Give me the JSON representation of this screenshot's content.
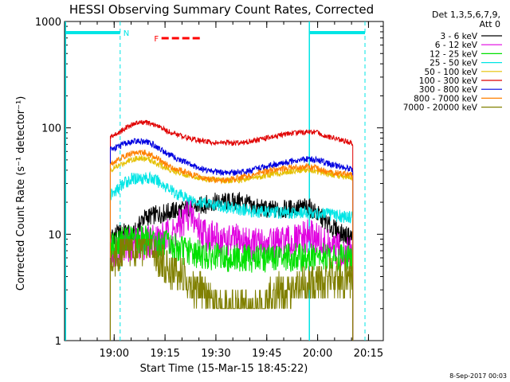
{
  "chart_data": {
    "type": "line",
    "title": "HESSI Observing Summary Count Rates, Corrected",
    "xlabel": "Start Time (15-Mar-15 18:45:22)",
    "ylabel": "Corrected Count Rate (s⁻¹ detector⁻¹)",
    "yscale": "log",
    "ylim": [
      1,
      1000
    ],
    "xlim_minutes_after_start": [
      0,
      94
    ],
    "x_ticks": [
      "19:00",
      "19:15",
      "19:30",
      "19:45",
      "20:00",
      "20:15"
    ],
    "y_ticks": [
      "1",
      "10",
      "100",
      "1000"
    ],
    "grid": false,
    "legend_header": [
      "Det 1,3,5,6,7,9,",
      "Att 0"
    ],
    "legend_position": "right",
    "flags": {
      "night_label": "N",
      "flare_label": "F",
      "colors": {
        "night": "#00e5e5",
        "flare": "#ff0000"
      }
    },
    "series": [
      {
        "name": "3 - 6 keV",
        "color": "#000000",
        "values": [
          [
            13.5,
            9.5
          ],
          [
            15,
            10
          ],
          [
            18,
            10.5
          ],
          [
            20,
            9.5
          ],
          [
            22,
            12
          ],
          [
            23,
            14
          ],
          [
            26,
            15
          ],
          [
            30,
            16
          ],
          [
            32,
            16.5
          ],
          [
            34,
            17
          ],
          [
            35,
            17
          ],
          [
            36,
            17.5
          ],
          [
            40,
            18.5
          ],
          [
            44,
            20
          ],
          [
            48,
            20
          ],
          [
            52,
            20.5
          ],
          [
            56,
            18
          ],
          [
            60,
            17
          ],
          [
            64,
            17
          ],
          [
            68,
            17.5
          ],
          [
            72,
            18
          ],
          [
            74,
            16
          ],
          [
            76,
            14
          ],
          [
            78,
            12
          ],
          [
            80,
            11
          ],
          [
            82,
            10
          ],
          [
            84,
            9.5
          ],
          [
            85,
            9.5
          ]
        ]
      },
      {
        "name": "6 - 12 keV",
        "color": "#e000e0",
        "values": [
          [
            13.5,
            7
          ],
          [
            16,
            7.5
          ],
          [
            20,
            8
          ],
          [
            24,
            8.5
          ],
          [
            28,
            9
          ],
          [
            32,
            10
          ],
          [
            34,
            12
          ],
          [
            35,
            13
          ],
          [
            36,
            16
          ],
          [
            38,
            14
          ],
          [
            40,
            11
          ],
          [
            42,
            10
          ],
          [
            44,
            9
          ],
          [
            48,
            8.5
          ],
          [
            52,
            8.5
          ],
          [
            56,
            8
          ],
          [
            60,
            8
          ],
          [
            64,
            8
          ],
          [
            68,
            8.5
          ],
          [
            70,
            9
          ],
          [
            72,
            9.5
          ],
          [
            73,
            9.5
          ],
          [
            74,
            9
          ],
          [
            76,
            8
          ],
          [
            78,
            7.5
          ],
          [
            80,
            7
          ],
          [
            82,
            7
          ],
          [
            84,
            6.5
          ],
          [
            85,
            6
          ]
        ]
      },
      {
        "name": "12 - 25 keV",
        "color": "#00e000",
        "values": [
          [
            13.5,
            7.5
          ],
          [
            15,
            8
          ],
          [
            18,
            9
          ],
          [
            22,
            9
          ],
          [
            26,
            8.5
          ],
          [
            28,
            8
          ],
          [
            30,
            8
          ],
          [
            32,
            7.5
          ],
          [
            36,
            7
          ],
          [
            40,
            6.5
          ],
          [
            44,
            6
          ],
          [
            48,
            6
          ],
          [
            52,
            6
          ],
          [
            56,
            6
          ],
          [
            60,
            6
          ],
          [
            64,
            6
          ],
          [
            68,
            6
          ],
          [
            72,
            6
          ],
          [
            76,
            6
          ],
          [
            80,
            6
          ],
          [
            84,
            6
          ],
          [
            85,
            6
          ]
        ]
      },
      {
        "name": "25 - 50 keV",
        "color": "#00e5e5",
        "values": [
          [
            13.5,
            23
          ],
          [
            16,
            27
          ],
          [
            18,
            31
          ],
          [
            20,
            33
          ],
          [
            22,
            34
          ],
          [
            24,
            34
          ],
          [
            26,
            33
          ],
          [
            28,
            31
          ],
          [
            30,
            28
          ],
          [
            32,
            25
          ],
          [
            36,
            22
          ],
          [
            40,
            20
          ],
          [
            44,
            19
          ],
          [
            48,
            18
          ],
          [
            52,
            17
          ],
          [
            56,
            16.5
          ],
          [
            60,
            16
          ],
          [
            64,
            16
          ],
          [
            68,
            16
          ],
          [
            72,
            16
          ],
          [
            76,
            15.5
          ],
          [
            80,
            15
          ],
          [
            84,
            14.5
          ],
          [
            85,
            14.5
          ]
        ]
      },
      {
        "name": "50 - 100 keV",
        "color": "#e5c000",
        "values": [
          [
            13.5,
            40
          ],
          [
            16,
            44
          ],
          [
            18,
            48
          ],
          [
            20,
            51
          ],
          [
            22,
            52
          ],
          [
            24,
            51
          ],
          [
            26,
            49
          ],
          [
            28,
            45
          ],
          [
            30,
            42
          ],
          [
            34,
            38
          ],
          [
            38,
            35
          ],
          [
            42,
            33
          ],
          [
            46,
            32
          ],
          [
            50,
            32
          ],
          [
            54,
            33
          ],
          [
            58,
            35
          ],
          [
            62,
            37
          ],
          [
            66,
            39
          ],
          [
            70,
            40
          ],
          [
            72,
            40
          ],
          [
            74,
            39
          ],
          [
            78,
            37
          ],
          [
            82,
            35
          ],
          [
            85,
            34
          ]
        ]
      },
      {
        "name": "100 - 300 keV",
        "color": "#e00000",
        "values": [
          [
            13.5,
            82
          ],
          [
            16,
            90
          ],
          [
            18,
            100
          ],
          [
            20,
            108
          ],
          [
            22,
            112
          ],
          [
            24,
            112
          ],
          [
            26,
            108
          ],
          [
            28,
            102
          ],
          [
            30,
            94
          ],
          [
            34,
            85
          ],
          [
            38,
            78
          ],
          [
            42,
            74
          ],
          [
            46,
            72
          ],
          [
            50,
            72
          ],
          [
            54,
            74
          ],
          [
            58,
            78
          ],
          [
            62,
            83
          ],
          [
            66,
            88
          ],
          [
            70,
            91
          ],
          [
            72,
            92
          ],
          [
            74,
            91
          ],
          [
            76,
            87
          ],
          [
            78,
            82
          ],
          [
            82,
            76
          ],
          [
            85,
            72
          ]
        ]
      },
      {
        "name": "300 - 800 keV",
        "color": "#0000e0",
        "values": [
          [
            13.5,
            63
          ],
          [
            16,
            67
          ],
          [
            18,
            71
          ],
          [
            20,
            74
          ],
          [
            22,
            75
          ],
          [
            24,
            74
          ],
          [
            26,
            70
          ],
          [
            28,
            64
          ],
          [
            30,
            58
          ],
          [
            34,
            50
          ],
          [
            38,
            44
          ],
          [
            42,
            40
          ],
          [
            46,
            38
          ],
          [
            50,
            38
          ],
          [
            54,
            39
          ],
          [
            58,
            42
          ],
          [
            62,
            45
          ],
          [
            66,
            48
          ],
          [
            70,
            50
          ],
          [
            72,
            51
          ],
          [
            74,
            50
          ],
          [
            76,
            48
          ],
          [
            78,
            46
          ],
          [
            82,
            43
          ],
          [
            85,
            41
          ]
        ]
      },
      {
        "name": "800 - 7000 keV",
        "color": "#ff8000",
        "values": [
          [
            13.5,
            46
          ],
          [
            16,
            51
          ],
          [
            18,
            55
          ],
          [
            20,
            58
          ],
          [
            22,
            59
          ],
          [
            24,
            58
          ],
          [
            26,
            55
          ],
          [
            28,
            50
          ],
          [
            30,
            45
          ],
          [
            34,
            40
          ],
          [
            38,
            36
          ],
          [
            42,
            33
          ],
          [
            46,
            32
          ],
          [
            50,
            33
          ],
          [
            54,
            35
          ],
          [
            58,
            38
          ],
          [
            62,
            40
          ],
          [
            66,
            42
          ],
          [
            70,
            43
          ],
          [
            72,
            43
          ],
          [
            74,
            42
          ],
          [
            76,
            40
          ],
          [
            78,
            38
          ],
          [
            82,
            37
          ],
          [
            85,
            36
          ]
        ]
      },
      {
        "name": "7000 - 20000 keV",
        "color": "#808000",
        "values": [
          [
            13.5,
            5.5
          ],
          [
            16,
            6.5
          ],
          [
            18,
            7.5
          ],
          [
            20,
            8
          ],
          [
            22,
            8
          ],
          [
            24,
            7.8
          ],
          [
            26,
            7
          ],
          [
            28,
            6
          ],
          [
            30,
            5
          ],
          [
            32,
            4.5
          ],
          [
            34,
            4
          ],
          [
            36,
            3.6
          ],
          [
            38,
            3
          ],
          [
            40,
            3
          ],
          [
            42,
            2.5
          ],
          [
            44,
            2
          ],
          [
            48,
            2
          ],
          [
            52,
            2
          ],
          [
            56,
            2
          ],
          [
            60,
            2.5
          ],
          [
            64,
            3
          ],
          [
            68,
            3.3
          ],
          [
            72,
            3.6
          ],
          [
            76,
            3.6
          ],
          [
            80,
            3.8
          ],
          [
            84,
            3.8
          ],
          [
            85,
            3.8
          ]
        ]
      }
    ]
  },
  "footer": {
    "timestamp": "8-Sep-2017 00:03"
  }
}
